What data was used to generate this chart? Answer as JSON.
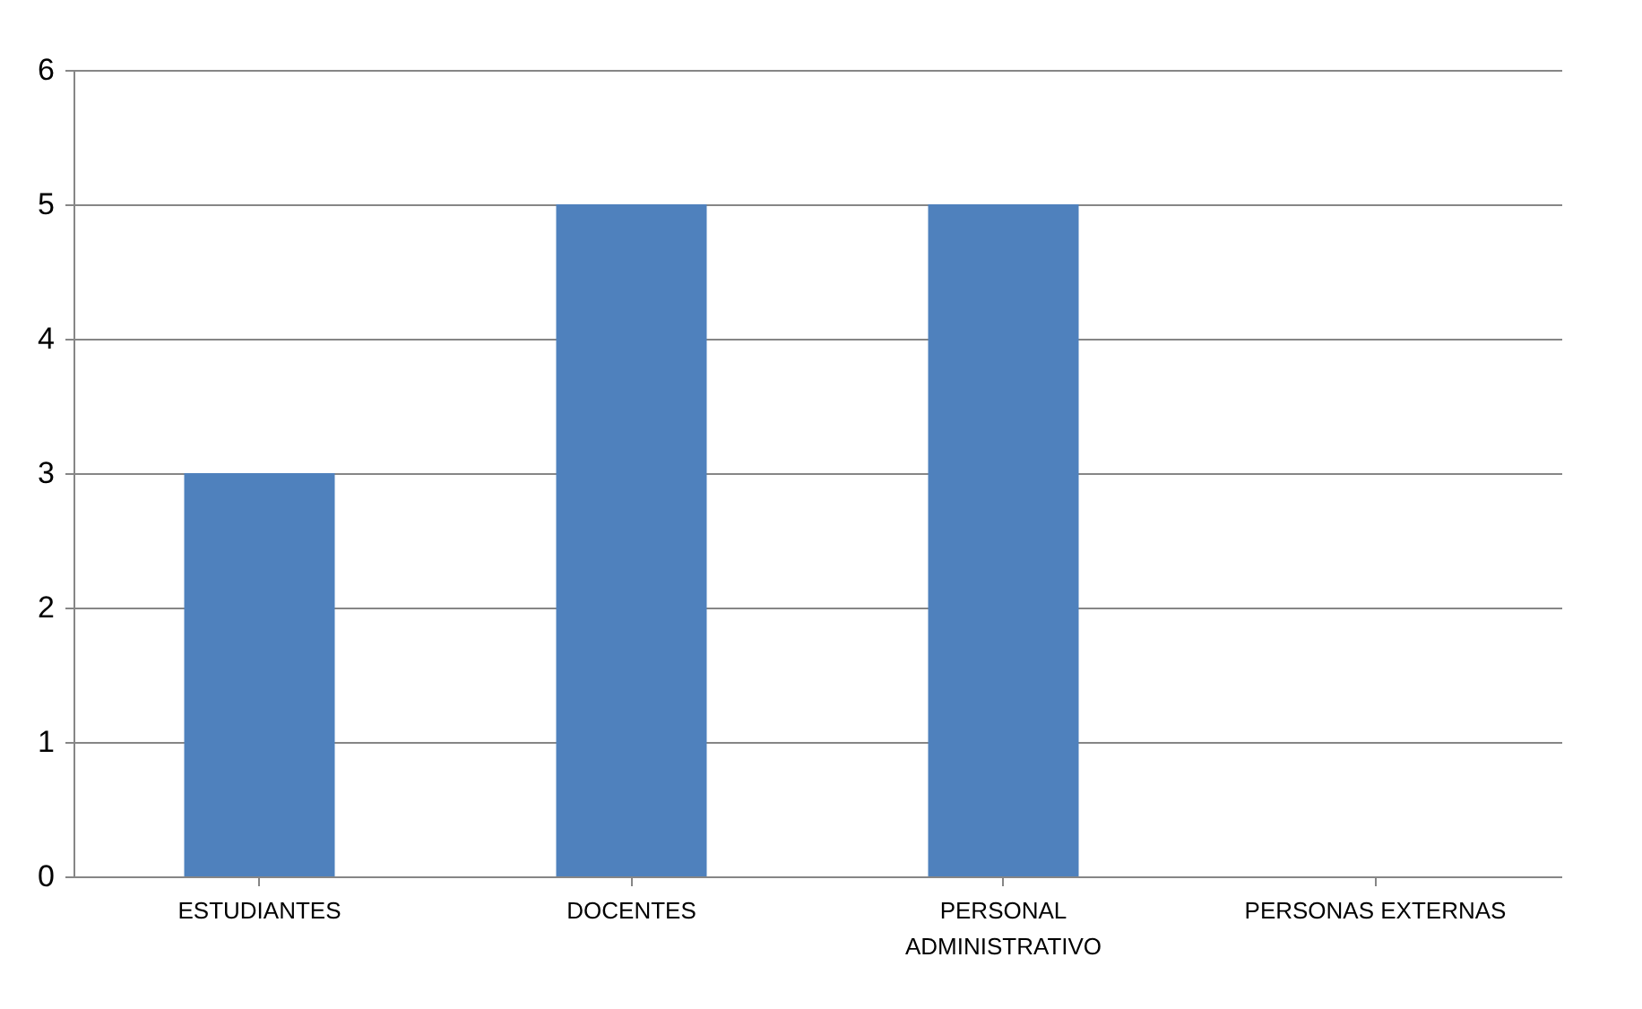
{
  "chart_data": {
    "type": "bar",
    "categories": [
      "ESTUDIANTES",
      "DOCENTES",
      "PERSONAL ADMINISTRATIVO",
      "PERSONAS EXTERNAS"
    ],
    "values": [
      3,
      5,
      5,
      0
    ],
    "color": "#4f81bd",
    "ylim": [
      0,
      6
    ],
    "yticks": [
      0,
      1,
      2,
      3,
      4,
      5,
      6
    ],
    "grid": "y"
  }
}
